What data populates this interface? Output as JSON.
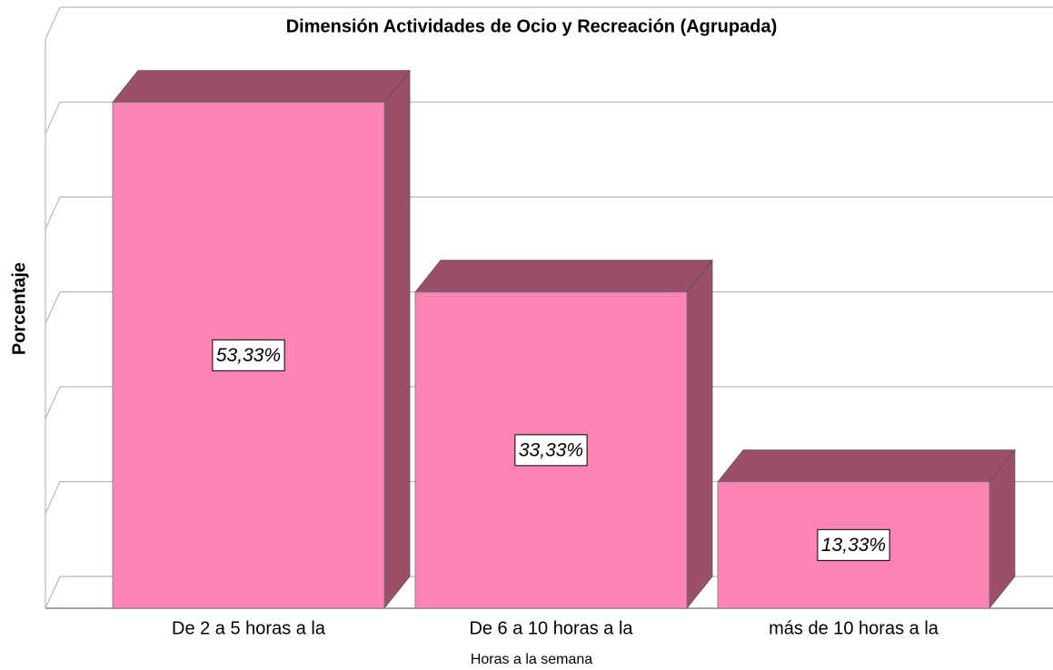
{
  "chart_data": {
    "type": "bar3d",
    "title": "Dimensión Actividades de Ocio y Recreación (Agrupada)",
    "x_label": "Horas a la semana",
    "y_label": "Porcentaje",
    "categories": [
      "De 2 a 5 horas a la",
      "De 6 a 10 horas a la",
      "más de 10 horas a la"
    ],
    "values": [
      53.33,
      33.33,
      13.33
    ],
    "value_labels": [
      "53,33%",
      "33,33%",
      "13,33%"
    ],
    "color": "#fe84b6",
    "side_color": "#9b4f6a",
    "ylim": [
      0,
      60
    ],
    "yticks": [
      0,
      10,
      20,
      30,
      40,
      50,
      60
    ],
    "grid": true
  }
}
